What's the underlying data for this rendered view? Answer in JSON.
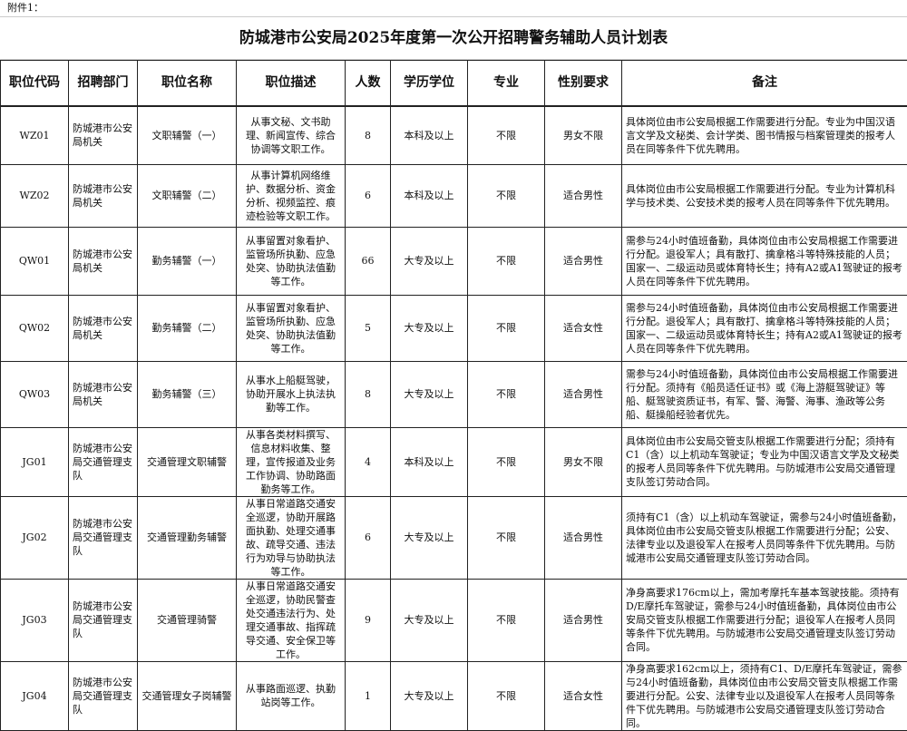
{
  "attachment_label": "附件1：",
  "title": "防城港市公安局2025年度第一次公开招聘警务辅助人员计划表",
  "headers": [
    "职位代码",
    "招聘部门",
    "职位名称",
    "职位描述",
    "人数",
    "学历学位",
    "专业",
    "性别要求",
    "备注"
  ],
  "rows": [
    {
      "code": "WZ01",
      "dept": "防城港市公安局机关",
      "name": "文职辅警（一）",
      "desc": "从事文秘、文书助理、新闻宣传、综合协调等文职工作。",
      "count": "8",
      "edu": "本科及以上",
      "major": "不限",
      "gender": "男女不限",
      "remark": "具体岗位由市公安局根据工作需要进行分配。专业为中国汉语言文学及文秘类、会计学类、图书情报与档案管理类的报考人员在同等条件下优先聘用。"
    },
    {
      "code": "WZ02",
      "dept": "防城港市公安局机关",
      "name": "文职辅警（二）",
      "desc": "从事计算机网络维护、数据分析、资金分析、视频监控、痕迹检验等文职工作。",
      "count": "6",
      "edu": "本科及以上",
      "major": "不限",
      "gender": "适合男性",
      "remark": "具体岗位由市公安局根据工作需要进行分配。专业为计算机科学与技术类、公安技术类的报考人员在同等条件下优先聘用。"
    },
    {
      "code": "QW01",
      "dept": "防城港市公安局机关",
      "name": "勤务辅警（一）",
      "desc": "从事留置对象看护、监管场所执勤、应急处突、协助执法值勤等工作。",
      "count": "66",
      "edu": "大专及以上",
      "major": "不限",
      "gender": "适合男性",
      "remark": "需参与24小时值班备勤，具体岗位由市公安局根据工作需要进行分配。退役军人；具有散打、擒拿格斗等特殊技能的人员；国家一、二级运动员或体育特长生；持有A2或A1驾驶证的报考人员在同等条件下优先聘用。"
    },
    {
      "code": "QW02",
      "dept": "防城港市公安局机关",
      "name": "勤务辅警（二）",
      "desc": "从事留置对象看护、监管场所执勤、应急处突、协助执法值勤等工作。",
      "count": "5",
      "edu": "大专及以上",
      "major": "不限",
      "gender": "适合女性",
      "remark": "需参与24小时值班备勤，具体岗位由市公安局根据工作需要进行分配。退役军人；具有散打、擒拿格斗等特殊技能的人员；国家一、二级运动员或体育特长生；持有A2或A1驾驶证的报考人员在同等条件下优先聘用。"
    },
    {
      "code": "QW03",
      "dept": "防城港市公安局机关",
      "name": "勤务辅警（三）",
      "desc": "从事水上船艇驾驶，协助开展水上执法执勤等工作。",
      "count": "8",
      "edu": "大专及以上",
      "major": "不限",
      "gender": "适合男性",
      "remark": "需参与24小时值班备勤，具体岗位由市公安局根据工作需要进行分配。须持有《船员适任证书》或《海上游艇驾驶证》等船、艇驾驶资质证书，有军、警、海警、海事、渔政等公务船、艇操船经验者优先。"
    },
    {
      "code": "JG01",
      "dept": "防城港市公安局交通管理支队",
      "name": "交通管理文职辅警",
      "desc": "从事各类材料撰写、信息材料收集、整理，宣传报道及业务工作协调、协助路面勤务等工作。",
      "count": "4",
      "edu": "本科及以上",
      "major": "不限",
      "gender": "男女不限",
      "remark": "具体岗位由市公安局交管支队根据工作需要进行分配；须持有C1（含）以上机动车驾驶证；专业为中国汉语言文学及文秘类的报考人员同等条件下优先聘用。与防城港市公安局交通管理支队签订劳动合同。"
    },
    {
      "code": "JG02",
      "dept": "防城港市公安局交通管理支队",
      "name": "交通管理勤务辅警",
      "desc": "从事日常道路交通安全巡逻，协助开展路面执勤、处理交通事故、疏导交通、违法行为劝导与协助执法等工作。",
      "count": "6",
      "edu": "大专及以上",
      "major": "不限",
      "gender": "适合男性",
      "remark": "须持有C1（含）以上机动车驾驶证，需参与24小时值班备勤，具体岗位由市公安局交管支队根据工作需要进行分配；公安、法律专业以及退役军人在报考人员同等条件下优先聘用。与防城港市公安局交通管理支队签订劳动合同。"
    },
    {
      "code": "JG03",
      "dept": "防城港市公安局交通管理支队",
      "name": "交通管理骑警",
      "desc": "从事日常道路交通安全巡逻，协助民警查处交通违法行为、处理交通事故、指挥疏导交通、安全保卫等工作。",
      "count": "9",
      "edu": "大专及以上",
      "major": "不限",
      "gender": "适合男性",
      "remark": "净身高要求176cm以上，需加考摩托车基本驾驶技能。须持有D/E摩托车驾驶证，需参与24小时值班备勤，具体岗位由市公安局交管支队根据工作需要进行分配；退役军人在报考人员同等条件下优先聘用。与防城港市公安局交通管理支队签订劳动合同。"
    },
    {
      "code": "JG04",
      "dept": "防城港市公安局交通管理支队",
      "name": "交通管理女子岗辅警",
      "desc": "从事路面巡逻、执勤站岗等工作。",
      "count": "1",
      "edu": "大专及以上",
      "major": "不限",
      "gender": "适合女性",
      "remark": "净身高要求162cm以上，须持有C1、D/E摩托车驾驶证，需参与24小时值班备勤，具体岗位由市公安局交管支队根据工作需要进行分配。公安、法律专业以及退役军人在报考人员同等条件下优先聘用。与防城港市公安局交通管理支队签订劳动合同。"
    }
  ]
}
